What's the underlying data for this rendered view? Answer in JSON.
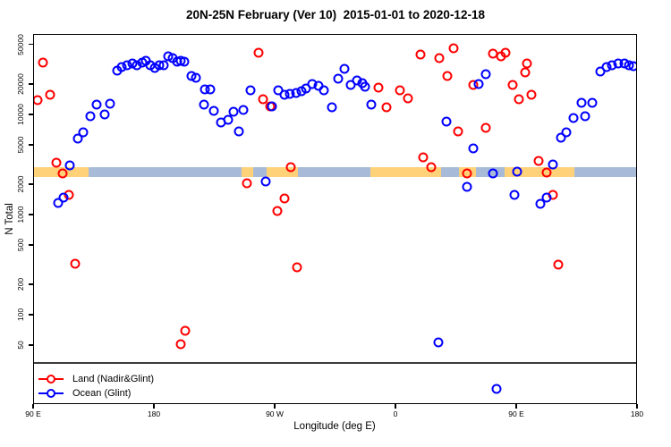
{
  "chart_data": {
    "type": "scatter",
    "title": "20N-25N February (Ver 10)  2015-01-01 to 2020-12-18",
    "xlabel": "Longitude (deg E)",
    "ylabel": "N Total",
    "x_axis": {
      "note": "longitude axis wraps eastward starting at 90E; positions are degrees east of 90E",
      "xlim": [
        0,
        450
      ],
      "ticks_deg": [
        0,
        90,
        180,
        270,
        360,
        450
      ],
      "tick_labels": [
        "90 E",
        "180",
        "90 W",
        "0",
        "90 E",
        "180"
      ]
    },
    "y_axis": {
      "scale": "log",
      "ylim": [
        12.8,
        63600
      ],
      "ticks": [
        50,
        100,
        200,
        500,
        1000,
        2000,
        5000,
        10000,
        20000,
        50000
      ],
      "tick_labels": [
        "50",
        "100",
        "200",
        "500",
        "1000",
        "2000",
        "5000",
        "10000",
        "20000",
        "50000"
      ]
    },
    "grid": false,
    "legend_position": "bottom-left",
    "threshold_line": {
      "value": 33.6,
      "color": "#3a3a3a"
    },
    "surface_band": {
      "value_range": [
        2350,
        2950
      ],
      "ocean_color": "#a7bad8",
      "land_color": "#ffd27a",
      "full_range_deg": [
        0,
        450
      ],
      "land_segments_deg": [
        [
          -1,
          41
        ],
        [
          155,
          164
        ],
        [
          174,
          197
        ],
        [
          251,
          304
        ],
        [
          317,
          330
        ],
        [
          351,
          403
        ]
      ]
    },
    "series": [
      {
        "name": "Land (Nadir&Glint)",
        "color": "#ff0000",
        "marker": "open-circle",
        "points": [
          [
            7.4,
            32900
          ],
          [
            -4,
            14200
          ],
          [
            3.4,
            13900
          ],
          [
            12.7,
            15700
          ],
          [
            17.4,
            3290
          ],
          [
            22.1,
            2580
          ],
          [
            26.8,
            1570
          ],
          [
            31.5,
            323
          ],
          [
            110,
            50.7
          ],
          [
            113.3,
            69.2
          ],
          [
            167.7,
            41300
          ],
          [
            171,
            14200
          ],
          [
            176.4,
            12000
          ],
          [
            191.8,
            2990
          ],
          [
            159.6,
            2060
          ],
          [
            187.1,
            1450
          ],
          [
            181.7,
            1090
          ],
          [
            196.5,
            297
          ],
          [
            257.5,
            18500
          ],
          [
            273.6,
            17400
          ],
          [
            279,
            14500
          ],
          [
            263.6,
            11800
          ],
          [
            288.4,
            39600
          ],
          [
            302.5,
            36500
          ],
          [
            290.4,
            3730
          ],
          [
            296.4,
            2990
          ],
          [
            313.2,
            45800
          ],
          [
            308.5,
            24200
          ],
          [
            316.6,
            6760
          ],
          [
            323.3,
            2580
          ],
          [
            327.9,
            19700
          ],
          [
            337.3,
            7340
          ],
          [
            342.7,
            40400
          ],
          [
            348.7,
            38000
          ],
          [
            352.1,
            41300
          ],
          [
            357.4,
            19700
          ],
          [
            362.1,
            14200
          ],
          [
            366.8,
            26300
          ],
          [
            368.2,
            32300
          ],
          [
            371.5,
            15700
          ],
          [
            376.9,
            3430
          ],
          [
            382.9,
            2630
          ],
          [
            387,
            1570
          ],
          [
            391,
            316
          ]
        ]
      },
      {
        "name": "Ocean (Glint)",
        "color": "#0000ff",
        "marker": "open-circle",
        "points": [
          [
            -4,
            2680
          ],
          [
            18.8,
            1310
          ],
          [
            22.8,
            1480
          ],
          [
            27.5,
            3100
          ],
          [
            33.5,
            5740
          ],
          [
            37.6,
            6620
          ],
          [
            42.9,
            9600
          ],
          [
            47.6,
            12500
          ],
          [
            53,
            10000
          ],
          [
            57,
            12800
          ],
          [
            62.4,
            27400
          ],
          [
            65.7,
            29700
          ],
          [
            69.7,
            31000
          ],
          [
            73.8,
            32300
          ],
          [
            77.1,
            31000
          ],
          [
            81.1,
            32900
          ],
          [
            83.8,
            34300
          ],
          [
            87.2,
            31000
          ],
          [
            90.5,
            29100
          ],
          [
            93.9,
            31000
          ],
          [
            97.2,
            31000
          ],
          [
            100.6,
            38000
          ],
          [
            103.9,
            36500
          ],
          [
            107.3,
            33600
          ],
          [
            110,
            34300
          ],
          [
            112.7,
            33600
          ],
          [
            118,
            24200
          ],
          [
            121.4,
            23200
          ],
          [
            128.1,
            17800
          ],
          [
            132.1,
            17800
          ],
          [
            127.4,
            12500
          ],
          [
            134.8,
            10900
          ],
          [
            140.2,
            8320
          ],
          [
            145.5,
            8840
          ],
          [
            149.6,
            10600
          ],
          [
            153.6,
            6760
          ],
          [
            156.9,
            11100
          ],
          [
            162.3,
            17400
          ],
          [
            173,
            2140
          ],
          [
            177.7,
            12000
          ],
          [
            182.4,
            17400
          ],
          [
            187.1,
            15700
          ],
          [
            191.1,
            16000
          ],
          [
            195.8,
            16400
          ],
          [
            199.8,
            17100
          ],
          [
            203.2,
            18200
          ],
          [
            207.9,
            20100
          ],
          [
            212.6,
            19300
          ],
          [
            216.6,
            17400
          ],
          [
            222.6,
            11800
          ],
          [
            227.3,
            22700
          ],
          [
            232,
            28500
          ],
          [
            236.7,
            19700
          ],
          [
            241.4,
            21800
          ],
          [
            245.4,
            20600
          ],
          [
            247.4,
            18900
          ],
          [
            252.2,
            12500
          ],
          [
            301.8,
            52.9
          ],
          [
            307.8,
            8490
          ],
          [
            323.3,
            1890
          ],
          [
            327.9,
            4580
          ],
          [
            331.9,
            20100
          ],
          [
            337.3,
            25200
          ],
          [
            342.7,
            2580
          ],
          [
            345.4,
            18.2
          ],
          [
            360.8,
            2680
          ],
          [
            358.8,
            1570
          ],
          [
            378.3,
            1280
          ],
          [
            382.9,
            1480
          ],
          [
            387,
            3160
          ],
          [
            393.1,
            5860
          ],
          [
            397.1,
            6620
          ],
          [
            402.4,
            9210
          ],
          [
            408.5,
            13100
          ],
          [
            411.2,
            9600
          ],
          [
            416.5,
            13100
          ],
          [
            422.6,
            27000
          ],
          [
            427.3,
            29700
          ],
          [
            431.3,
            31000
          ],
          [
            436,
            32300
          ],
          [
            440.7,
            32300
          ],
          [
            444,
            31000
          ],
          [
            447.4,
            30300
          ]
        ]
      }
    ]
  },
  "legend": {
    "items": [
      {
        "label": "Land (Nadir&Glint)",
        "color": "#ff0000"
      },
      {
        "label": "Ocean (Glint)",
        "color": "#0000ff"
      }
    ]
  }
}
